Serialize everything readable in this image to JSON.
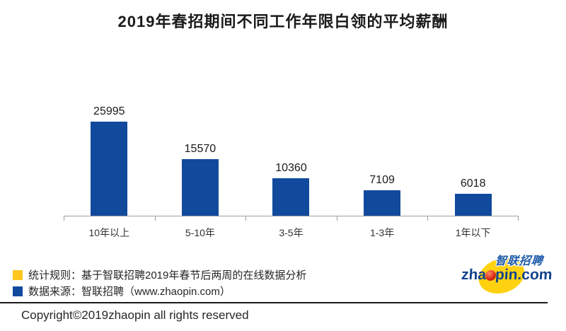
{
  "header": {
    "title": "2019年春招期间不同工作年限白领的平均薪酬"
  },
  "chart_data": {
    "type": "bar",
    "title": "2019年春招期间不同工作年限白领的平均薪酬",
    "categories": [
      "10年以上",
      "5-10年",
      "3-5年",
      "1-3年",
      "1年以下"
    ],
    "values": [
      25995,
      15570,
      10360,
      7109,
      6018
    ],
    "xlabel": "",
    "ylabel": "",
    "ylim": [
      0,
      26000
    ],
    "grid": false,
    "legend_position": "none",
    "data_labels_shown": true,
    "bar_color": "#114a9d",
    "axis_color": "#9e9e9e"
  },
  "legend": {
    "items": [
      {
        "swatch_color": "#ffc61e",
        "label": "统计规则：基于智联招聘2019年春节后两周的在线数据分析"
      },
      {
        "swatch_color": "#114a9d",
        "label": "数据来源：智联招聘（www.zhaopin.com）"
      }
    ]
  },
  "footer": {
    "copyright": "Copyright©2019zhaopin all rights reserved"
  },
  "logo": {
    "cn_text": "智联招聘",
    "en_prefix": "zha",
    "en_suffix": "pin.com",
    "cn_color": "#1c5aa8",
    "en_color": "#11438c",
    "ellipse_color": "#ffd211",
    "ball_color": "#d6270f"
  }
}
